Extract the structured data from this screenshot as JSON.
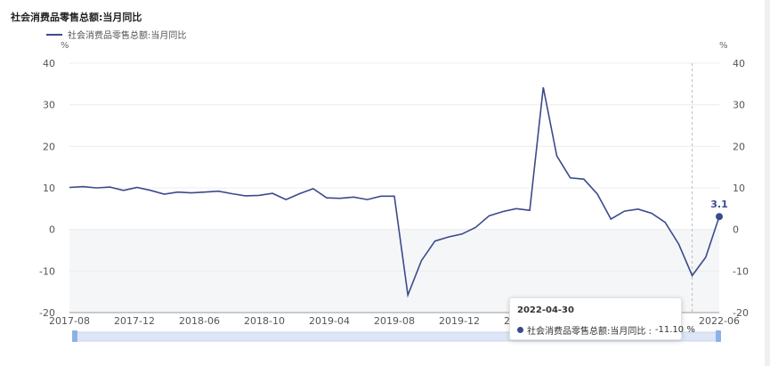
{
  "title": "社会消费品零售总额:当月同比",
  "legend": {
    "label": "社会消费品零售总额:当月同比",
    "color": "#3b4a8c"
  },
  "axis": {
    "unit_left": "%",
    "unit_right": "%"
  },
  "tooltip": {
    "date": "2022-04-30",
    "series": "社会消费品零售总额:当月同比 :",
    "value": "-11.10 %"
  },
  "chart_data": {
    "type": "line",
    "ylim": [
      -20,
      40
    ],
    "yticks": [
      40,
      30,
      20,
      10,
      0,
      -10,
      -20
    ],
    "xtick_labels": [
      "2017-08",
      "2017-12",
      "2018-06",
      "2018-10",
      "2019-04",
      "2019-08",
      "2019-12",
      "2020-06",
      "2020-1",
      "",
      "2022-06"
    ],
    "series": [
      {
        "name": "社会消费品零售总额:当月同比",
        "color": "#3b4a8c",
        "x": [
          "2017-08",
          "2017-09",
          "2017-10",
          "2017-11",
          "2017-12",
          "2018-03",
          "2018-04",
          "2018-05",
          "2018-06",
          "2018-07",
          "2018-08",
          "2018-09",
          "2018-10",
          "2018-11",
          "2018-12",
          "2019-03",
          "2019-04",
          "2019-05",
          "2019-06",
          "2019-07",
          "2019-08",
          "2019-09",
          "2019-10",
          "2019-11",
          "2019-12",
          "2020-03",
          "2020-04",
          "2020-05",
          "2020-06",
          "2020-07",
          "2020-08",
          "2020-09",
          "2020-10",
          "2020-11",
          "2020-12",
          "2021-03",
          "2021-04",
          "2021-05",
          "2021-06",
          "2021-07",
          "2021-08",
          "2021-09",
          "2021-10",
          "2021-11",
          "2021-12",
          "2022-03",
          "2022-04",
          "2022-05",
          "2022-06"
        ],
        "values": [
          10.1,
          10.3,
          10.0,
          10.2,
          9.4,
          10.1,
          9.4,
          8.5,
          9.0,
          8.8,
          9.0,
          9.2,
          8.6,
          8.1,
          8.2,
          8.7,
          7.2,
          8.6,
          9.8,
          7.6,
          7.5,
          7.8,
          7.2,
          8.0,
          8.0,
          -15.8,
          -7.5,
          -2.8,
          -1.8,
          -1.1,
          0.5,
          3.3,
          4.3,
          5.0,
          4.6,
          34.2,
          17.7,
          12.4,
          12.1,
          8.5,
          2.5,
          4.4,
          4.9,
          3.9,
          1.7,
          -3.5,
          -11.1,
          -6.7,
          3.1
        ],
        "end_label": "3.1"
      }
    ],
    "highlight": {
      "x": "2022-04",
      "value": -11.1
    }
  }
}
